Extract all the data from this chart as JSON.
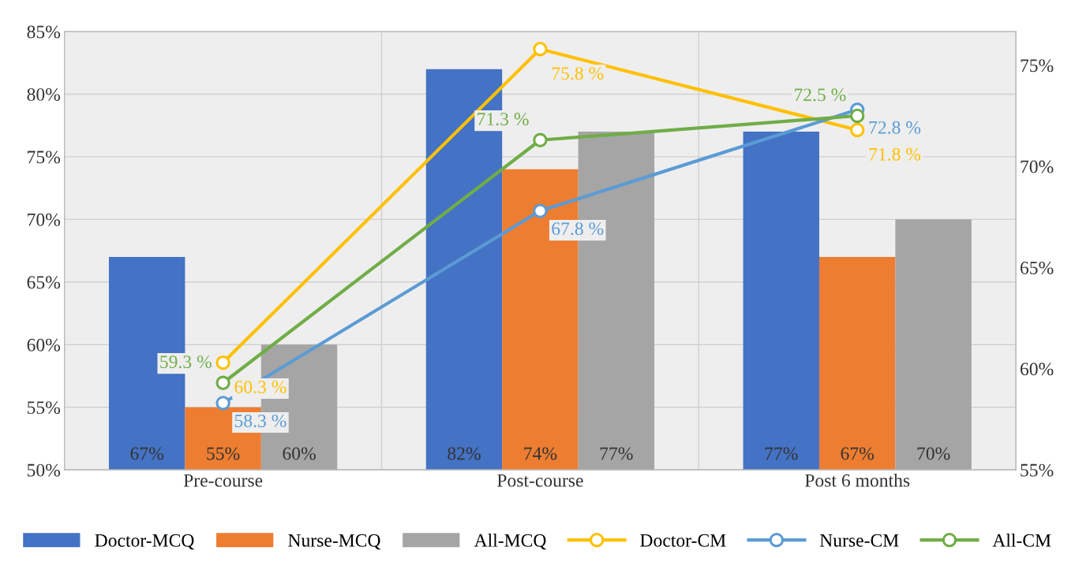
{
  "chart_data": {
    "type": "bar",
    "categories": [
      "Pre-course",
      "Post-course",
      "Post 6 months"
    ],
    "series": [
      {
        "name": "Doctor-MCQ",
        "color": "#4472c4",
        "values": [
          67,
          82,
          77
        ],
        "value_labels": [
          "67%",
          "82%",
          "77%"
        ]
      },
      {
        "name": "Nurse-MCQ",
        "color": "#ed7d31",
        "values": [
          55,
          74,
          67
        ],
        "value_labels": [
          "55%",
          "74%",
          "67%"
        ]
      },
      {
        "name": "All-MCQ",
        "color": "#a5a5a5",
        "values": [
          60,
          77,
          70
        ],
        "value_labels": [
          "60%",
          "77%",
          "70%"
        ]
      },
      {
        "name": "Doctor-CM",
        "type": "line",
        "axis": "y2",
        "color": "#ffc000",
        "values": [
          60.3,
          75.8,
          71.8
        ],
        "value_labels": [
          "60.3 %",
          "75.8 %",
          "71.8 %"
        ]
      },
      {
        "name": "Nurse-CM",
        "type": "line",
        "axis": "y2",
        "color": "#5b9bd5",
        "values": [
          58.3,
          67.8,
          72.8
        ],
        "value_labels": [
          "58.3 %",
          "67.8 %",
          "72.8 %"
        ]
      },
      {
        "name": "All-CM",
        "type": "line",
        "axis": "y2",
        "color": "#70ad47",
        "values": [
          59.3,
          71.3,
          72.5
        ],
        "value_labels": [
          "59.3 %",
          "71.3 %",
          "72.5 %"
        ]
      }
    ],
    "ylim": [
      50,
      85
    ],
    "yticks": [
      {
        "value": 50,
        "label": "50%"
      },
      {
        "value": 55,
        "label": "55%"
      },
      {
        "value": 60,
        "label": "60%"
      },
      {
        "value": 65,
        "label": "65%"
      },
      {
        "value": 70,
        "label": "70%"
      },
      {
        "value": 75,
        "label": "75%"
      },
      {
        "value": 80,
        "label": "80%"
      },
      {
        "value": 85,
        "label": "85%"
      }
    ],
    "y2lim": [
      55,
      76.66667
    ],
    "y2ticks": [
      {
        "value": 55,
        "label": "55%"
      },
      {
        "value": 60,
        "label": "60%"
      },
      {
        "value": 65,
        "label": "65%"
      },
      {
        "value": 70,
        "label": "70%"
      },
      {
        "value": 75,
        "label": "75%"
      }
    ],
    "grid": "y",
    "legend": "bottom",
    "marker": "circle",
    "line_style": "solid"
  }
}
